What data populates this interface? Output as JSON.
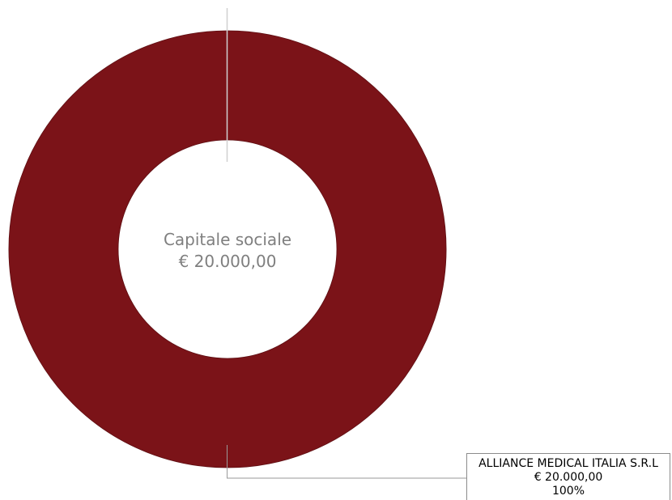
{
  "colors": {
    "slice": "#7b1318",
    "slice_edge": "#5e0e12",
    "center_text": "#7f7f7f",
    "leader": "#9a9a9a",
    "guide": "#d0d0d0"
  },
  "center": {
    "line1": "Capitale sociale",
    "line2": "€ 20.000,00"
  },
  "chart_data": {
    "type": "pie",
    "donut": true,
    "slices": [
      {
        "name": "ALLIANCE MEDICAL ITALIA S.R.L",
        "value": 20000,
        "value_label": "€ 20.000,00",
        "percent_label": "100%"
      }
    ],
    "total_label": "€ 20.000,00",
    "legend": "none"
  }
}
